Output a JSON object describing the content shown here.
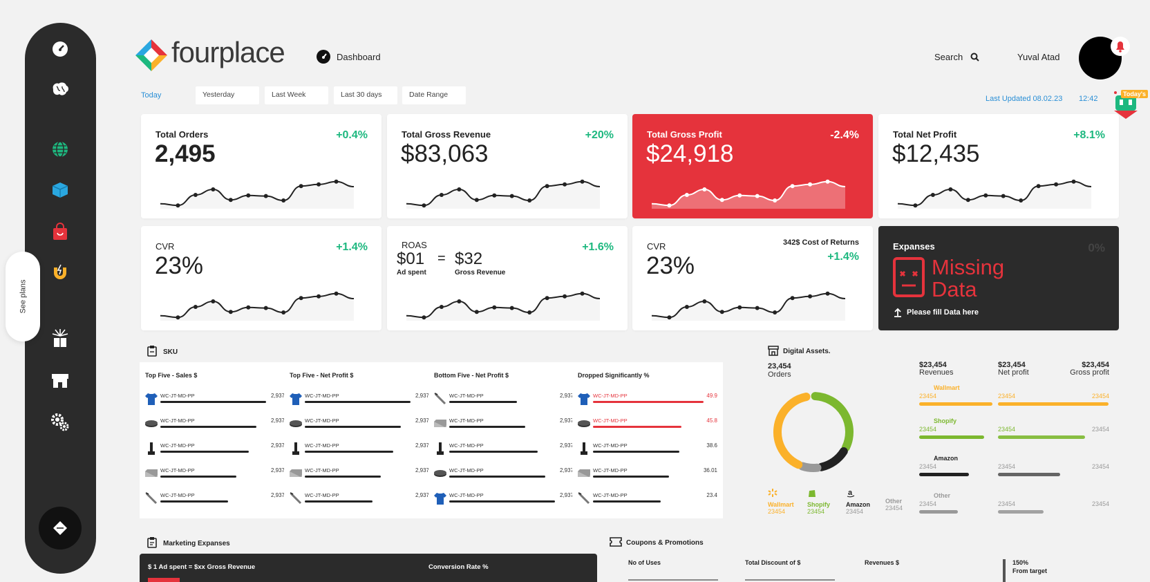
{
  "app": {
    "brand": "fourplace",
    "nav_label": "Dashboard",
    "search_label": "Search",
    "user_name": "Yuval Atad",
    "see_plans": "See plans",
    "badge": "Today's"
  },
  "filters": {
    "today": "Today",
    "yesterday": "Yesterday",
    "last_week": "Last Week",
    "last_30": "Last 30 days",
    "date_range": "Date Range"
  },
  "updated": {
    "label": "Last Updated 08.02.23",
    "time": "12:42"
  },
  "kpis": [
    {
      "label": "Total Orders",
      "value": "2,495",
      "change": "+0.4%"
    },
    {
      "label": "Total Gross Revenue",
      "value": "$83,063",
      "change": "+20%"
    },
    {
      "label": "Total Gross Profit",
      "value": "$24,918",
      "change": "-2.4%"
    },
    {
      "label": "Total Net Profit",
      "value": "$12,435",
      "change": "+8.1%"
    }
  ],
  "kpis2": {
    "cvr1": {
      "label": "CVR",
      "value": "23%",
      "change": "+1.4%"
    },
    "roas": {
      "label": "ROAS",
      "ad_value": "$01",
      "eq": "=",
      "rev_value": "$32",
      "ad_label": "Ad spent",
      "rev_label": "Gross Revenue",
      "change": "+1.6%"
    },
    "cvr2": {
      "label": "CVR",
      "value": "23%",
      "note": "342$ Cost of Returns",
      "change": "+1.4%"
    },
    "expanses": {
      "label": "Expanses",
      "pct": "0%",
      "missing1": "Missing",
      "missing2": "Data",
      "fill": "Please fill Data here"
    }
  },
  "sku": {
    "title": "SKU",
    "columns": [
      {
        "title": "Top Five - Sales $",
        "rows": [
          {
            "icon": "shirt-icon",
            "code": "WC-JT-MD-PP",
            "value": "2,937",
            "pct": 0.86
          },
          {
            "icon": "puck-icon",
            "code": "WC-JT-MD-PP",
            "value": "2,937",
            "pct": 0.78
          },
          {
            "icon": "stick-icon",
            "code": "WC-JT-MD-PP",
            "value": "2,937",
            "pct": 0.72
          },
          {
            "icon": "box-icon",
            "code": "WC-JT-MD-PP",
            "value": "2,937",
            "pct": 0.62
          },
          {
            "icon": "blade-icon",
            "code": "WC-JT-MD-PP",
            "value": "2,937",
            "pct": 0.55
          }
        ]
      },
      {
        "title": "Top Five - Net Profit $",
        "rows": [
          {
            "icon": "shirt-icon",
            "code": "WC-JT-MD-PP",
            "value": "2,937",
            "pct": 0.86
          },
          {
            "icon": "puck-icon",
            "code": "WC-JT-MD-PP",
            "value": "2,937",
            "pct": 0.78
          },
          {
            "icon": "stick-icon",
            "code": "WC-JT-MD-PP",
            "value": "2,937",
            "pct": 0.72
          },
          {
            "icon": "box-icon",
            "code": "WC-JT-MD-PP",
            "value": "2,937",
            "pct": 0.62
          },
          {
            "icon": "blade-icon",
            "code": "WC-JT-MD-PP",
            "value": "2,937",
            "pct": 0.55
          }
        ]
      },
      {
        "title": "Bottom Five - Net Profit $",
        "rows": [
          {
            "icon": "blade-icon",
            "code": "WC-JT-MD-PP",
            "value": "2,937",
            "pct": 0.55
          },
          {
            "icon": "box-icon",
            "code": "WC-JT-MD-PP",
            "value": "2,937",
            "pct": 0.62
          },
          {
            "icon": "stick-icon",
            "code": "WC-JT-MD-PP",
            "value": "2,937",
            "pct": 0.72
          },
          {
            "icon": "puck-icon",
            "code": "WC-JT-MD-PP",
            "value": "2,937",
            "pct": 0.78
          },
          {
            "icon": "shirt-icon",
            "code": "WC-JT-MD-PP",
            "value": "2,937",
            "pct": 0.86
          }
        ]
      },
      {
        "title": "Dropped Significantly %",
        "rows": [
          {
            "icon": "shirt-icon",
            "code": "WC-JT-MD-PP",
            "value": "49.9",
            "pct": 0.9,
            "red": true
          },
          {
            "icon": "puck-icon",
            "code": "WC-JT-MD-PP",
            "value": "45.8",
            "pct": 0.72,
            "red": true
          },
          {
            "icon": "stick-icon",
            "code": "WC-JT-MD-PP",
            "value": "38.6",
            "pct": 0.7
          },
          {
            "icon": "box-icon",
            "code": "WC-JT-MD-PP",
            "value": "36.01",
            "pct": 0.62
          },
          {
            "icon": "blade-icon",
            "code": "WC-JT-MD-PP",
            "value": "23.4",
            "pct": 0.55
          }
        ]
      }
    ]
  },
  "digital": {
    "title": "Digital Assets.",
    "orders_value": "23,454",
    "orders_label": "Orders",
    "revenues_value": "$23,454",
    "revenues_label": "Revenues",
    "net_value": "$23,454",
    "net_label": "Net profit",
    "gross_value": "$23,454",
    "gross_label": "Gross profit",
    "channels": [
      {
        "name": "Wallmart",
        "num": "23454",
        "net": "23454",
        "gross": "23454",
        "color": "#fbb12a",
        "icon": "walmart-icon"
      },
      {
        "name": "Shopify",
        "num": "23454",
        "net": "23454",
        "gross": "23454",
        "color": "#7cb82f",
        "icon": "shopify-icon"
      },
      {
        "name": "Amazon",
        "num": "23454",
        "net": "23454",
        "gross": "23454",
        "color": "#222222",
        "icon": "amazon-icon"
      },
      {
        "name": "Other",
        "num": "23454",
        "net": "23454",
        "gross": "23454",
        "color": "#999999",
        "icon": ""
      }
    ],
    "donut": [
      {
        "name": "Wallmart",
        "value": 0.42
      },
      {
        "name": "Shopify",
        "value": 0.33
      },
      {
        "name": "Amazon",
        "value": 0.13
      },
      {
        "name": "Other",
        "value": 0.07
      }
    ]
  },
  "marketing": {
    "title": "Marketing Expanses",
    "col1": "$ 1 Ad spent = $xx Gross Revenue",
    "col2": "Conversion Rate %"
  },
  "coupons": {
    "title": "Coupons & Promotions",
    "col1": "No of Uses",
    "col2": "Total Discount of $",
    "col3": "Revenues $",
    "target_pct": "150%",
    "target_label": "From target"
  },
  "colors": {
    "accent_green": "#1db87f",
    "accent_red": "#e5333c",
    "link_blue": "#2a8fd6"
  }
}
